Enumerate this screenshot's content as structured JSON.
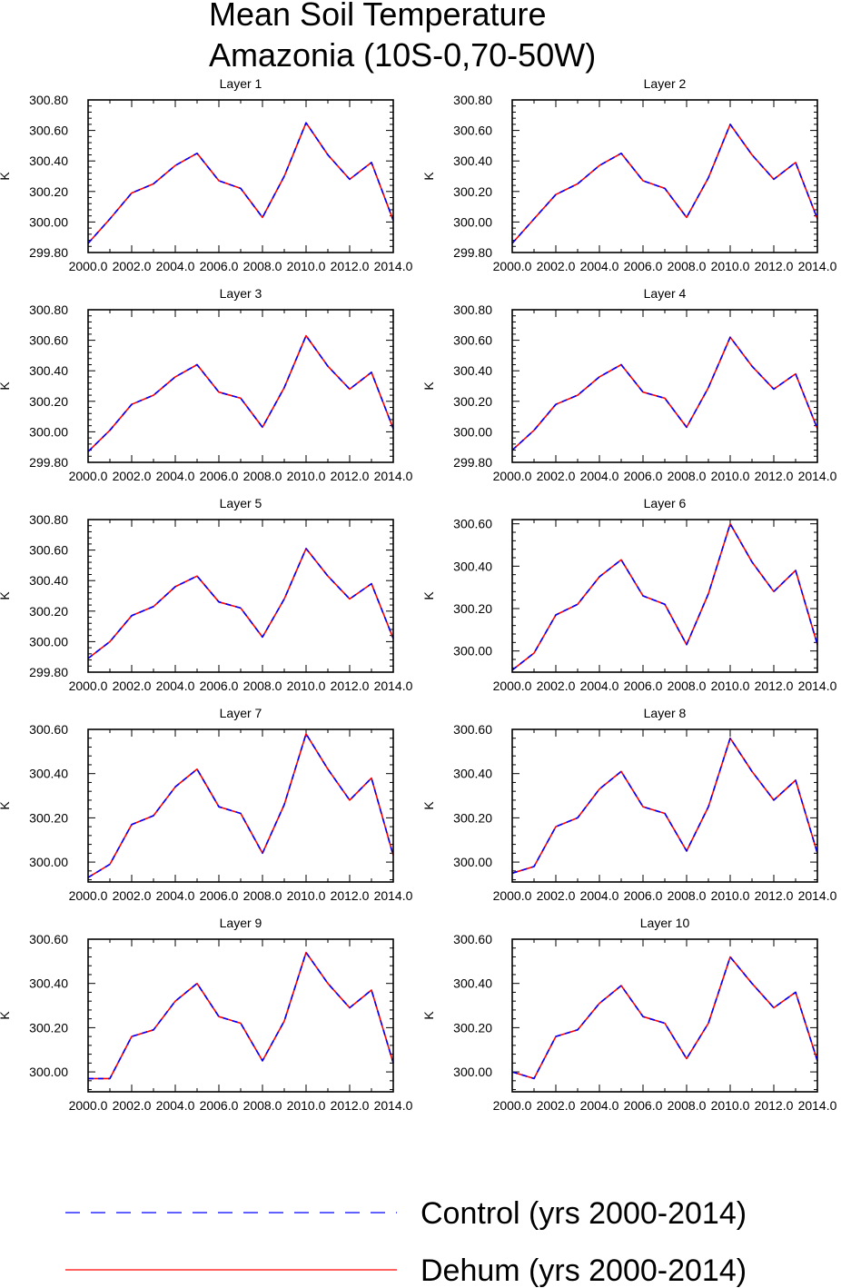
{
  "title": {
    "line1": "Mean Soil Temperature",
    "line2": "Amazonia (10S-0,70-50W)"
  },
  "colors": {
    "control": "#0000ff",
    "dehum": "#ff0000",
    "axis": "#000000"
  },
  "legend": [
    {
      "label": "Control (yrs 2000-2014)",
      "color": "#0000ff",
      "style": "dashed"
    },
    {
      "label": "Dehum (yrs 2000-2014)",
      "color": "#ff0000",
      "style": "solid"
    }
  ],
  "chart_data": [
    {
      "type": "line",
      "title": "Layer 1",
      "ylabel": "K",
      "xlim": [
        2000,
        2014
      ],
      "ylim": [
        299.8,
        300.8
      ],
      "xticks": [
        "2000.0",
        "2002.0",
        "2004.0",
        "2006.0",
        "2008.0",
        "2010.0",
        "2012.0",
        "2014.0"
      ],
      "yticks": [
        "299.80",
        "300.00",
        "300.20",
        "300.40",
        "300.60",
        "300.80"
      ],
      "x": [
        2000,
        2001,
        2002,
        2003,
        2004,
        2005,
        2006,
        2007,
        2008,
        2009,
        2010,
        2011,
        2012,
        2013,
        2014
      ],
      "series": [
        {
          "name": "Control (yrs 2000-2014)",
          "values": [
            299.86,
            300.02,
            300.19,
            300.25,
            300.37,
            300.45,
            300.27,
            300.22,
            300.03,
            300.3,
            300.65,
            300.44,
            300.28,
            300.39,
            300.01
          ]
        },
        {
          "name": "Dehum (yrs 2000-2014)",
          "values": [
            299.86,
            300.02,
            300.19,
            300.25,
            300.37,
            300.45,
            300.27,
            300.22,
            300.03,
            300.3,
            300.65,
            300.44,
            300.28,
            300.39,
            300.01
          ]
        }
      ]
    },
    {
      "type": "line",
      "title": "Layer 2",
      "ylabel": "K",
      "xlim": [
        2000,
        2014
      ],
      "ylim": [
        299.8,
        300.8
      ],
      "xticks": [
        "2000.0",
        "2002.0",
        "2004.0",
        "2006.0",
        "2008.0",
        "2010.0",
        "2012.0",
        "2014.0"
      ],
      "yticks": [
        "299.80",
        "300.00",
        "300.20",
        "300.40",
        "300.60",
        "300.80"
      ],
      "x": [
        2000,
        2001,
        2002,
        2003,
        2004,
        2005,
        2006,
        2007,
        2008,
        2009,
        2010,
        2011,
        2012,
        2013,
        2014
      ],
      "series": [
        {
          "name": "Control (yrs 2000-2014)",
          "values": [
            299.86,
            300.02,
            300.18,
            300.25,
            300.37,
            300.45,
            300.27,
            300.22,
            300.03,
            300.29,
            300.64,
            300.44,
            300.28,
            300.39,
            300.02
          ]
        },
        {
          "name": "Dehum (yrs 2000-2014)",
          "values": [
            299.86,
            300.02,
            300.18,
            300.25,
            300.37,
            300.45,
            300.27,
            300.22,
            300.03,
            300.29,
            300.64,
            300.44,
            300.28,
            300.39,
            300.02
          ]
        }
      ]
    },
    {
      "type": "line",
      "title": "Layer 3",
      "ylabel": "K",
      "xlim": [
        2000,
        2014
      ],
      "ylim": [
        299.8,
        300.8
      ],
      "xticks": [
        "2000.0",
        "2002.0",
        "2004.0",
        "2006.0",
        "2008.0",
        "2010.0",
        "2012.0",
        "2014.0"
      ],
      "yticks": [
        "299.80",
        "300.00",
        "300.20",
        "300.40",
        "300.60",
        "300.80"
      ],
      "x": [
        2000,
        2001,
        2002,
        2003,
        2004,
        2005,
        2006,
        2007,
        2008,
        2009,
        2010,
        2011,
        2012,
        2013,
        2014
      ],
      "series": [
        {
          "name": "Control (yrs 2000-2014)",
          "values": [
            299.87,
            300.01,
            300.18,
            300.24,
            300.36,
            300.44,
            300.26,
            300.22,
            300.03,
            300.29,
            300.63,
            300.43,
            300.28,
            300.39,
            300.02
          ]
        },
        {
          "name": "Dehum (yrs 2000-2014)",
          "values": [
            299.87,
            300.01,
            300.18,
            300.24,
            300.36,
            300.44,
            300.26,
            300.22,
            300.03,
            300.29,
            300.63,
            300.43,
            300.28,
            300.39,
            300.02
          ]
        }
      ]
    },
    {
      "type": "line",
      "title": "Layer 4",
      "ylabel": "K",
      "xlim": [
        2000,
        2014
      ],
      "ylim": [
        299.8,
        300.8
      ],
      "xticks": [
        "2000.0",
        "2002.0",
        "2004.0",
        "2006.0",
        "2008.0",
        "2010.0",
        "2012.0",
        "2014.0"
      ],
      "yticks": [
        "299.80",
        "300.00",
        "300.20",
        "300.40",
        "300.60",
        "300.80"
      ],
      "x": [
        2000,
        2001,
        2002,
        2003,
        2004,
        2005,
        2006,
        2007,
        2008,
        2009,
        2010,
        2011,
        2012,
        2013,
        2014
      ],
      "series": [
        {
          "name": "Control (yrs 2000-2014)",
          "values": [
            299.88,
            300.01,
            300.18,
            300.24,
            300.36,
            300.44,
            300.26,
            300.22,
            300.03,
            300.29,
            300.62,
            300.43,
            300.28,
            300.38,
            300.02
          ]
        },
        {
          "name": "Dehum (yrs 2000-2014)",
          "values": [
            299.88,
            300.01,
            300.18,
            300.24,
            300.36,
            300.44,
            300.26,
            300.22,
            300.03,
            300.29,
            300.62,
            300.43,
            300.28,
            300.38,
            300.02
          ]
        }
      ]
    },
    {
      "type": "line",
      "title": "Layer 5",
      "ylabel": "K",
      "xlim": [
        2000,
        2014
      ],
      "ylim": [
        299.8,
        300.8
      ],
      "xticks": [
        "2000.0",
        "2002.0",
        "2004.0",
        "2006.0",
        "2008.0",
        "2010.0",
        "2012.0",
        "2014.0"
      ],
      "yticks": [
        "299.80",
        "300.00",
        "300.20",
        "300.40",
        "300.60",
        "300.80"
      ],
      "x": [
        2000,
        2001,
        2002,
        2003,
        2004,
        2005,
        2006,
        2007,
        2008,
        2009,
        2010,
        2011,
        2012,
        2013,
        2014
      ],
      "series": [
        {
          "name": "Control (yrs 2000-2014)",
          "values": [
            299.89,
            300.0,
            300.17,
            300.23,
            300.36,
            300.43,
            300.26,
            300.22,
            300.03,
            300.28,
            300.61,
            300.43,
            300.28,
            300.38,
            300.02
          ]
        },
        {
          "name": "Dehum (yrs 2000-2014)",
          "values": [
            299.89,
            300.0,
            300.17,
            300.23,
            300.36,
            300.43,
            300.26,
            300.22,
            300.03,
            300.28,
            300.61,
            300.43,
            300.28,
            300.38,
            300.02
          ]
        }
      ]
    },
    {
      "type": "line",
      "title": "Layer 6",
      "ylabel": "K",
      "xlim": [
        2000,
        2014
      ],
      "ylim": [
        299.9,
        300.62
      ],
      "xticks": [
        "2000.0",
        "2002.0",
        "2004.0",
        "2006.0",
        "2008.0",
        "2010.0",
        "2012.0",
        "2014.0"
      ],
      "yticks": [
        "300.00",
        "300.20",
        "300.40",
        "300.60"
      ],
      "x": [
        2000,
        2001,
        2002,
        2003,
        2004,
        2005,
        2006,
        2007,
        2008,
        2009,
        2010,
        2011,
        2012,
        2013,
        2014
      ],
      "series": [
        {
          "name": "Control (yrs 2000-2014)",
          "values": [
            299.91,
            299.99,
            300.17,
            300.22,
            300.35,
            300.43,
            300.26,
            300.22,
            300.03,
            300.27,
            300.6,
            300.42,
            300.28,
            300.38,
            300.03
          ]
        },
        {
          "name": "Dehum (yrs 2000-2014)",
          "values": [
            299.91,
            299.99,
            300.17,
            300.22,
            300.35,
            300.43,
            300.26,
            300.22,
            300.03,
            300.27,
            300.6,
            300.42,
            300.28,
            300.38,
            300.03
          ]
        }
      ]
    },
    {
      "type": "line",
      "title": "Layer 7",
      "ylabel": "K",
      "xlim": [
        2000,
        2014
      ],
      "ylim": [
        299.91,
        300.6
      ],
      "xticks": [
        "2000.0",
        "2002.0",
        "2004.0",
        "2006.0",
        "2008.0",
        "2010.0",
        "2012.0",
        "2014.0"
      ],
      "yticks": [
        "300.00",
        "300.20",
        "300.40",
        "300.60"
      ],
      "x": [
        2000,
        2001,
        2002,
        2003,
        2004,
        2005,
        2006,
        2007,
        2008,
        2009,
        2010,
        2011,
        2012,
        2013,
        2014
      ],
      "series": [
        {
          "name": "Control (yrs 2000-2014)",
          "values": [
            299.93,
            299.99,
            300.17,
            300.21,
            300.34,
            300.42,
            300.25,
            300.22,
            300.04,
            300.26,
            300.58,
            300.42,
            300.28,
            300.38,
            300.03
          ]
        },
        {
          "name": "Dehum (yrs 2000-2014)",
          "values": [
            299.93,
            299.99,
            300.17,
            300.21,
            300.34,
            300.42,
            300.25,
            300.22,
            300.04,
            300.26,
            300.58,
            300.42,
            300.28,
            300.38,
            300.03
          ]
        }
      ]
    },
    {
      "type": "line",
      "title": "Layer 8",
      "ylabel": "K",
      "xlim": [
        2000,
        2014
      ],
      "ylim": [
        299.91,
        300.6
      ],
      "xticks": [
        "2000.0",
        "2002.0",
        "2004.0",
        "2006.0",
        "2008.0",
        "2010.0",
        "2012.0",
        "2014.0"
      ],
      "yticks": [
        "300.00",
        "300.20",
        "300.40",
        "300.60"
      ],
      "x": [
        2000,
        2001,
        2002,
        2003,
        2004,
        2005,
        2006,
        2007,
        2008,
        2009,
        2010,
        2011,
        2012,
        2013,
        2014
      ],
      "series": [
        {
          "name": "Control (yrs 2000-2014)",
          "values": [
            299.95,
            299.98,
            300.16,
            300.2,
            300.33,
            300.41,
            300.25,
            300.22,
            300.05,
            300.25,
            300.56,
            300.41,
            300.28,
            300.37,
            300.04
          ]
        },
        {
          "name": "Dehum (yrs 2000-2014)",
          "values": [
            299.95,
            299.98,
            300.16,
            300.2,
            300.33,
            300.41,
            300.25,
            300.22,
            300.05,
            300.25,
            300.56,
            300.41,
            300.28,
            300.37,
            300.04
          ]
        }
      ]
    },
    {
      "type": "line",
      "title": "Layer 9",
      "ylabel": "K",
      "xlim": [
        2000,
        2014
      ],
      "ylim": [
        299.91,
        300.6
      ],
      "xticks": [
        "2000.0",
        "2002.0",
        "2004.0",
        "2006.0",
        "2008.0",
        "2010.0",
        "2012.0",
        "2014.0"
      ],
      "yticks": [
        "300.00",
        "300.20",
        "300.40",
        "300.60"
      ],
      "x": [
        2000,
        2001,
        2002,
        2003,
        2004,
        2005,
        2006,
        2007,
        2008,
        2009,
        2010,
        2011,
        2012,
        2013,
        2014
      ],
      "series": [
        {
          "name": "Control (yrs 2000-2014)",
          "values": [
            299.97,
            299.97,
            300.16,
            300.19,
            300.32,
            300.4,
            300.25,
            300.22,
            300.05,
            300.23,
            300.54,
            300.4,
            300.29,
            300.37,
            300.04
          ]
        },
        {
          "name": "Dehum (yrs 2000-2014)",
          "values": [
            299.97,
            299.97,
            300.16,
            300.19,
            300.32,
            300.4,
            300.25,
            300.22,
            300.05,
            300.23,
            300.54,
            300.4,
            300.29,
            300.37,
            300.04
          ]
        }
      ]
    },
    {
      "type": "line",
      "title": "Layer 10",
      "ylabel": "K",
      "xlim": [
        2000,
        2014
      ],
      "ylim": [
        299.91,
        300.6
      ],
      "xticks": [
        "2000.0",
        "2002.0",
        "2004.0",
        "2006.0",
        "2008.0",
        "2010.0",
        "2012.0",
        "2014.0"
      ],
      "yticks": [
        "300.00",
        "300.20",
        "300.40",
        "300.60"
      ],
      "x": [
        2000,
        2001,
        2002,
        2003,
        2004,
        2005,
        2006,
        2007,
        2008,
        2009,
        2010,
        2011,
        2012,
        2013,
        2014
      ],
      "series": [
        {
          "name": "Control (yrs 2000-2014)",
          "values": [
            300.0,
            299.97,
            300.16,
            300.19,
            300.31,
            300.39,
            300.25,
            300.22,
            300.06,
            300.22,
            300.52,
            300.4,
            300.29,
            300.36,
            300.05
          ]
        },
        {
          "name": "Dehum (yrs 2000-2014)",
          "values": [
            300.0,
            299.97,
            300.16,
            300.19,
            300.31,
            300.39,
            300.25,
            300.22,
            300.06,
            300.22,
            300.52,
            300.4,
            300.29,
            300.36,
            300.05
          ]
        }
      ]
    }
  ]
}
